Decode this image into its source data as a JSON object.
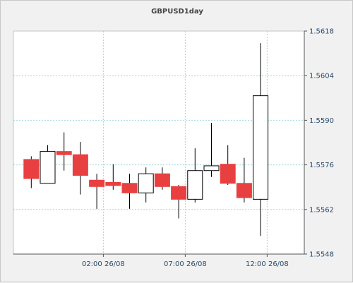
{
  "chart_data": {
    "type": "candlestick",
    "title": "GBPUSD1day",
    "xlabel": "",
    "ylabel": "",
    "ylim": [
      1.5548,
      1.5618
    ],
    "yticks": [
      "1.5618",
      "1.5604",
      "1.5590",
      "1.5576",
      "1.5562",
      "1.5548"
    ],
    "xticks": [
      {
        "label": "02:00 26/08",
        "index": 4.4
      },
      {
        "label": "07:00 26/08",
        "index": 9.4
      },
      {
        "label": "12:00 26/08",
        "index": 14.4
      }
    ],
    "grid": true,
    "colors": {
      "up": "#ffffff",
      "down": "#e84040",
      "outline": "#000000",
      "grid": "#9fd7d7"
    },
    "candles": [
      {
        "open": 1.55777,
        "high": 1.55787,
        "low": 1.55687,
        "close": 1.55717
      },
      {
        "open": 1.55702,
        "high": 1.55822,
        "low": 1.55702,
        "close": 1.55802
      },
      {
        "open": 1.55802,
        "high": 1.55862,
        "low": 1.55742,
        "close": 1.55792
      },
      {
        "open": 1.55792,
        "high": 1.55832,
        "low": 1.55667,
        "close": 1.55727
      },
      {
        "open": 1.55712,
        "high": 1.55732,
        "low": 1.55622,
        "close": 1.55692
      },
      {
        "open": 1.55705,
        "high": 1.55762,
        "low": 1.55682,
        "close": 1.55695
      },
      {
        "open": 1.55702,
        "high": 1.55732,
        "low": 1.55622,
        "close": 1.55672
      },
      {
        "open": 1.55672,
        "high": 1.55752,
        "low": 1.55642,
        "close": 1.55732
      },
      {
        "open": 1.55732,
        "high": 1.55752,
        "low": 1.55682,
        "close": 1.55692
      },
      {
        "open": 1.55692,
        "high": 1.55697,
        "low": 1.55592,
        "close": 1.55652
      },
      {
        "open": 1.55652,
        "high": 1.55812,
        "low": 1.55642,
        "close": 1.55742
      },
      {
        "open": 1.55742,
        "high": 1.55892,
        "low": 1.55722,
        "close": 1.55757
      },
      {
        "open": 1.55762,
        "high": 1.55822,
        "low": 1.55697,
        "close": 1.55702
      },
      {
        "open": 1.55702,
        "high": 1.55782,
        "low": 1.55642,
        "close": 1.55657
      },
      {
        "open": 1.55652,
        "high": 1.56142,
        "low": 1.55537,
        "close": 1.55977
      }
    ]
  }
}
